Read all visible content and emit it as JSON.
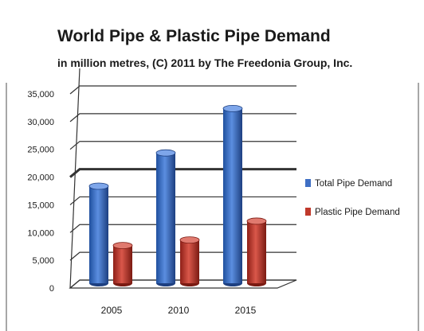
{
  "chart_data": {
    "type": "bar",
    "title": "World Pipe & Plastic Pipe Demand",
    "subtitle": "in million metres, (C) 2011 by The Freedonia Group, Inc.",
    "categories": [
      "2005",
      "2010",
      "2015"
    ],
    "series": [
      {
        "name": "Total Pipe Demand",
        "values": [
          17500,
          23500,
          31500
        ],
        "color": "#3f6fc4"
      },
      {
        "name": "Plastic Pipe Demand",
        "values": [
          6800,
          7800,
          11200
        ],
        "color": "#c0392b"
      }
    ],
    "y_ticks": [
      "0",
      "5,000",
      "10,000",
      "15,000",
      "20,000",
      "25,000",
      "30,000",
      "35,000"
    ],
    "ylim": [
      0,
      35000
    ],
    "grid": true,
    "legend_position": "right",
    "is_3d": true
  }
}
